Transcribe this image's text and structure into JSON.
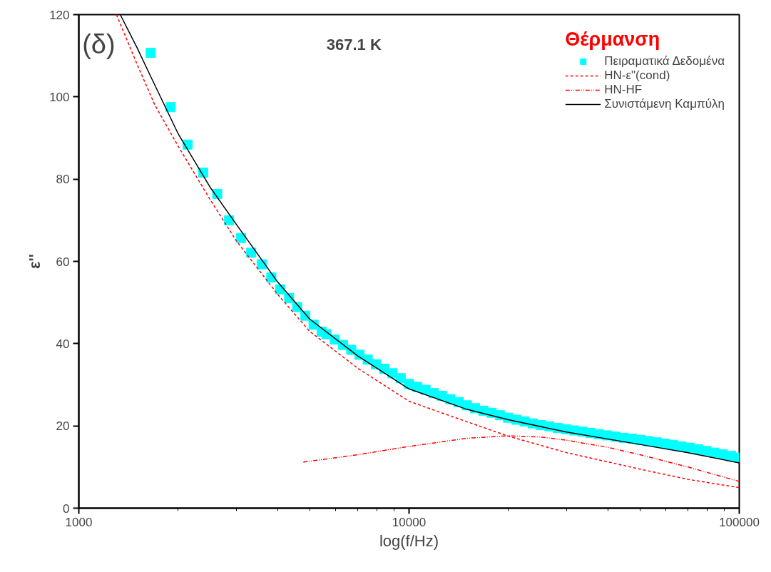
{
  "chart_data": {
    "type": "line",
    "title": "367.1 K",
    "xlabel": "log(f/Hz)",
    "ylabel": "ε''",
    "legend_title": "Θέρμανση",
    "annotations": [
      "(δ)"
    ],
    "log": "x",
    "xlim": [
      1000,
      100000
    ],
    "xticks": [
      1000,
      10000,
      100000
    ],
    "ylim": [
      0,
      120
    ],
    "yticks": [
      0,
      20,
      40,
      60,
      80,
      100,
      120
    ],
    "grid": false,
    "legend": "top right",
    "series": [
      {
        "name": "Πειραματικά Δεδομένα",
        "type": "scatter",
        "marker": "square",
        "color": "#00ffff",
        "x": [
          1650,
          1897,
          2136,
          2380,
          2625,
          2852,
          3097,
          3327,
          3579,
          3828,
          4072,
          4333,
          4584,
          4853,
          5140,
          5440,
          5623,
          5957,
          6310,
          6683,
          7079,
          7499,
          7943,
          8414,
          8913,
          9441,
          10000,
          10593,
          11220,
          11885,
          12589,
          13335,
          14125,
          14962,
          15849,
          16788,
          17783,
          18836,
          19953,
          21135,
          22387,
          23714,
          25119,
          26607,
          28184,
          29854,
          31623,
          33497,
          35481,
          37584,
          39811,
          42170,
          44668,
          47315,
          50119,
          53088,
          56234,
          59566,
          63096,
          66834,
          70795,
          74989,
          79433,
          84140,
          89125,
          94406,
          100000
        ],
        "values": [
          110.7,
          97.5,
          88.4,
          81.6,
          76.4,
          70.0,
          65.7,
          62.1,
          59.3,
          56.1,
          53.2,
          51.1,
          48.9,
          46.8,
          44.6,
          42.9,
          42.3,
          41,
          39.7,
          38.5,
          37.3,
          36.1,
          35,
          33.9,
          32.8,
          31.6,
          30.2,
          29.5,
          28.8,
          28,
          27.3,
          26.5,
          25.8,
          25,
          24.3,
          23.7,
          23.2,
          22.6,
          22,
          21.5,
          21.1,
          20.6,
          20.2,
          19.9,
          19.5,
          19.2,
          18.9,
          18.6,
          18.3,
          18,
          17.7,
          17.4,
          17.1,
          16.9,
          16.6,
          16.3,
          16,
          15.7,
          15.4,
          15,
          14.7,
          14.3,
          13.9,
          13.5,
          13.1,
          12.7,
          12.3
        ]
      },
      {
        "name": "HN-ε\"(cond)",
        "line_style": "dashed",
        "color": "#ff0000",
        "x": [
          1300,
          1500,
          1700,
          2000,
          2500,
          3000,
          4000,
          5000,
          7000,
          10000,
          15000,
          20000,
          30000,
          50000,
          70000,
          100000
        ],
        "values": [
          120,
          108,
          98,
          88,
          75,
          65,
          52,
          43,
          34,
          26,
          21,
          17.5,
          13.5,
          9.5,
          7,
          5
        ]
      },
      {
        "name": "HN-HF",
        "line_style": "dotted",
        "color": "#ff0000",
        "x": [
          4785,
          7000,
          10000,
          15000,
          20000,
          25000,
          30000,
          40000,
          50000,
          70000,
          100000
        ],
        "values": [
          11.2,
          13,
          15,
          17,
          17.6,
          17.3,
          16.5,
          14.8,
          13,
          10,
          6.5
        ]
      },
      {
        "name": "Συνιστάμενη Καμπύλη",
        "line_style": "solid",
        "color": "#000000",
        "x": [
          1335,
          1500,
          1650,
          2000,
          2500,
          3000,
          4000,
          5000,
          7000,
          10000,
          15000,
          20000,
          30000,
          50000,
          70000,
          100000
        ],
        "values": [
          120,
          112,
          105,
          91,
          78,
          69,
          55,
          46,
          37,
          29,
          24,
          21.5,
          18.5,
          15.5,
          13.5,
          11
        ]
      }
    ]
  }
}
